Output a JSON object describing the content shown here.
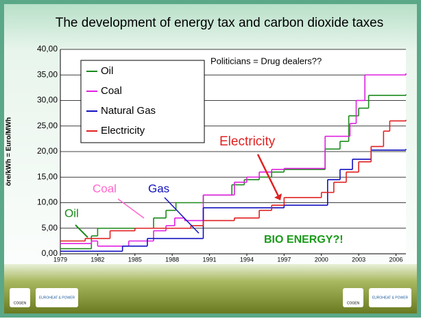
{
  "chart_data": {
    "type": "step",
    "title": "The development of energy tax and carbon dioxide taxes",
    "y_label": "öre/kWh = Euro/MWh",
    "annotations": [
      "Politicians = Drug dealers??",
      "Electricity",
      "Coal",
      "Gas",
      "Oil",
      "BIO ENERGY?!"
    ],
    "xlim": [
      1979,
      2006.8
    ],
    "ylim": [
      0,
      40
    ],
    "xticks": [
      1979,
      1982,
      1985,
      1988,
      1991,
      1994,
      1997,
      2000,
      2003,
      2006
    ],
    "yticks": [
      {
        "value": 0,
        "label": "0,00"
      },
      {
        "value": 5,
        "label": "5,00"
      },
      {
        "value": 10,
        "label": "10,00"
      },
      {
        "value": 15,
        "label": "15,00"
      },
      {
        "value": 20,
        "label": "20,00"
      },
      {
        "value": 25,
        "label": "25,00"
      },
      {
        "value": 30,
        "label": "30,00"
      },
      {
        "value": 35,
        "label": "35,00"
      },
      {
        "value": 40,
        "label": "40,00"
      }
    ],
    "grid": true,
    "series": [
      {
        "name": "Oil",
        "color": "#1a8a1a",
        "x": [
          1979,
          1981.5,
          1982,
          1986.5,
          1987.5,
          1988.3,
          1990.5,
          1992.8,
          1993.8,
          1995,
          1996,
          1997,
          2000.3,
          2001.5,
          2002.2,
          2003,
          2003.8,
          2006.8
        ],
        "values": [
          1,
          3.5,
          5,
          7,
          8.5,
          10,
          11.5,
          13.5,
          14.5,
          15,
          16,
          16.5,
          20.5,
          22,
          27,
          28.5,
          31,
          31.2
        ]
      },
      {
        "name": "Coal",
        "color": "#e020e0",
        "x": [
          1979,
          1981.5,
          1982,
          1984.5,
          1986.5,
          1987.5,
          1988.2,
          1989,
          1990.5,
          1993,
          1994,
          1995,
          1996,
          1997,
          2000.3,
          2002.3,
          2002.8,
          2003.5,
          2006.8
        ],
        "values": [
          2,
          2.5,
          1.5,
          2.5,
          4.5,
          5.5,
          7,
          6.5,
          11.5,
          14,
          15,
          16,
          16.5,
          16.7,
          23,
          25.5,
          30,
          35,
          35.3
        ]
      },
      {
        "name": "Natural Gas",
        "color": "#1010c0",
        "x": [
          1979,
          1984,
          1986,
          1990.5,
          1997,
          2000.5,
          2001.5,
          2002.5,
          2004,
          2006.8
        ],
        "values": [
          0.5,
          1.5,
          3,
          9,
          9.5,
          14.5,
          16.5,
          18.5,
          20.3,
          20.5
        ]
      },
      {
        "name": "Electricity",
        "color": "#e02020",
        "x": [
          1979,
          1981,
          1983,
          1985,
          1989.5,
          1990.5,
          1993,
          1995,
          1996,
          1997,
          2000,
          2001,
          2002,
          2003,
          2004,
          2005,
          2005.5,
          2006.8
        ],
        "values": [
          2.5,
          3,
          4.5,
          5,
          5.5,
          6.5,
          7,
          8.5,
          9.5,
          11,
          12,
          14,
          16,
          18,
          21,
          24,
          26,
          26.2
        ]
      }
    ],
    "logos": [
      "COGEN",
      "EUROHEAT & POWER",
      "COGEN",
      "EUROHEAT & POWER"
    ]
  }
}
